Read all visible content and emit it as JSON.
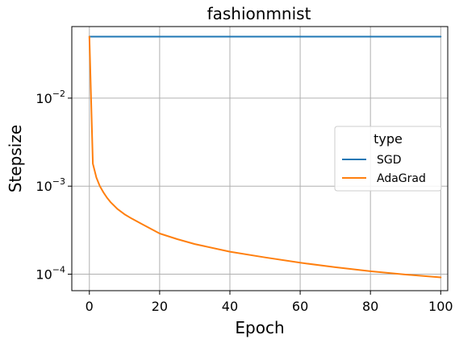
{
  "chart_data": {
    "type": "line",
    "title": "fashionmnist",
    "xlabel": "Epoch",
    "ylabel": "Stepsize",
    "xlim": [
      -5,
      102
    ],
    "ylim": [
      6.5e-05,
      0.065
    ],
    "yscale": "log",
    "grid": true,
    "x_ticks": [
      0,
      20,
      40,
      60,
      80,
      100
    ],
    "x_tick_labels": [
      "0",
      "20",
      "40",
      "60",
      "80",
      "100"
    ],
    "y_ticks": [
      0.01,
      0.001,
      0.0001
    ],
    "y_tick_labels": [
      {
        "base": "10",
        "exp": "−2"
      },
      {
        "base": "10",
        "exp": "−3"
      },
      {
        "base": "10",
        "exp": "−4"
      }
    ],
    "legend": {
      "title": "type",
      "placement": "center-right"
    },
    "series": [
      {
        "name": "SGD",
        "color": "#1f77b4",
        "x": [
          0,
          100
        ],
        "y": [
          0.05,
          0.05
        ]
      },
      {
        "name": "AdaGrad",
        "color": "#ff7f0e",
        "x": [
          0,
          1,
          2,
          3,
          4,
          5,
          6,
          8,
          10,
          12,
          15,
          20,
          25,
          30,
          40,
          50,
          60,
          70,
          80,
          90,
          100
        ],
        "y": [
          0.05,
          0.0018,
          0.00125,
          0.001,
          0.00085,
          0.00074,
          0.00066,
          0.00055,
          0.00048,
          0.00043,
          0.00037,
          0.00029,
          0.00025,
          0.00022,
          0.00018,
          0.000155,
          0.000135,
          0.00012,
          0.000108,
          9.9e-05,
          9.2e-05
        ]
      }
    ]
  }
}
